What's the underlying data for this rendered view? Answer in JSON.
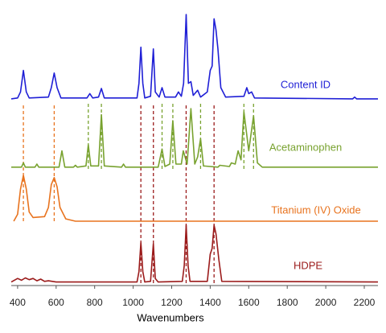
{
  "chart_data": {
    "type": "line",
    "x_label": "Wavenumbers",
    "xlim": [
      367,
      2271
    ],
    "xticks": [
      400,
      600,
      800,
      1000,
      1200,
      1400,
      1600,
      1800,
      2000,
      2200
    ],
    "series": [
      {
        "name": "Content ID",
        "color": "#1f1fd6",
        "x": [
          367,
          400,
          415,
          430,
          445,
          460,
          560,
          575,
          590,
          605,
          625,
          760,
          775,
          790,
          820,
          835,
          850,
          1020,
          1030,
          1040,
          1050,
          1060,
          1090,
          1105,
          1115,
          1135,
          1150,
          1165,
          1220,
          1235,
          1250,
          1262,
          1275,
          1287,
          1300,
          1312,
          1335,
          1350,
          1385,
          1400,
          1410,
          1420,
          1430,
          1440,
          1455,
          1480,
          1575,
          1590,
          1600,
          1615,
          1630,
          2140,
          2150,
          2160,
          2271
        ],
        "values": [
          2,
          3,
          10,
          35,
          10,
          3,
          4,
          15,
          32,
          15,
          3,
          3,
          8,
          3,
          4,
          14,
          3,
          3,
          20,
          62,
          20,
          3,
          5,
          60,
          10,
          4,
          15,
          4,
          4,
          10,
          5,
          20,
          100,
          20,
          22,
          6,
          12,
          4,
          10,
          35,
          40,
          95,
          82,
          60,
          15,
          4,
          5,
          15,
          8,
          10,
          3,
          2,
          4,
          2,
          2
        ]
      },
      {
        "name": "Acetaminophen",
        "color": "#78a22f",
        "x": [
          367,
          420,
          430,
          440,
          490,
          500,
          510,
          615,
          630,
          645,
          690,
          700,
          710,
          755,
          767,
          780,
          820,
          835,
          850,
          940,
          950,
          960,
          1130,
          1150,
          1165,
          1190,
          1206,
          1222,
          1250,
          1260,
          1280,
          1300,
          1320,
          1335,
          1350,
          1365,
          1440,
          1450,
          1500,
          1510,
          1530,
          1545,
          1560,
          1575,
          1600,
          1625,
          1645,
          1670,
          2271
        ],
        "values": [
          3,
          3,
          10,
          3,
          3,
          8,
          3,
          3,
          30,
          3,
          3,
          6,
          3,
          5,
          40,
          5,
          5,
          90,
          5,
          3,
          8,
          3,
          3,
          33,
          4,
          8,
          80,
          8,
          8,
          30,
          8,
          100,
          8,
          20,
          50,
          5,
          3,
          6,
          4,
          10,
          8,
          30,
          15,
          95,
          30,
          88,
          10,
          3,
          3
        ]
      },
      {
        "name": "Titanium (IV) Oxide",
        "color": "#e8731e",
        "x": [
          380,
          400,
          415,
          430,
          445,
          460,
          480,
          540,
          560,
          575,
          590,
          605,
          620,
          650,
          700,
          2271
        ],
        "values": [
          0,
          15,
          70,
          100,
          70,
          20,
          8,
          10,
          30,
          80,
          95,
          75,
          30,
          5,
          0,
          0
        ],
        "peaks": [
          430,
          590
        ]
      },
      {
        "name": "HDPE",
        "color": "#9b1b1b",
        "x": [
          367,
          400,
          420,
          440,
          460,
          480,
          500,
          520,
          540,
          560,
          600,
          1020,
          1030,
          1040,
          1050,
          1060,
          1090,
          1105,
          1115,
          1130,
          1255,
          1265,
          1275,
          1285,
          1295,
          1385,
          1400,
          1410,
          1420,
          1430,
          1445,
          1460,
          2271
        ],
        "values": [
          2,
          8,
          5,
          9,
          6,
          8,
          4,
          7,
          3,
          4,
          2,
          2,
          20,
          70,
          20,
          2,
          3,
          68,
          8,
          2,
          3,
          30,
          100,
          30,
          3,
          3,
          50,
          60,
          100,
          85,
          40,
          3,
          2
        ],
        "peaks": [
          1040,
          1105,
          1275,
          1420
        ]
      }
    ],
    "green_peaks": [
      767,
      835,
      1150,
      1206,
      1350,
      1575,
      1625
    ]
  }
}
